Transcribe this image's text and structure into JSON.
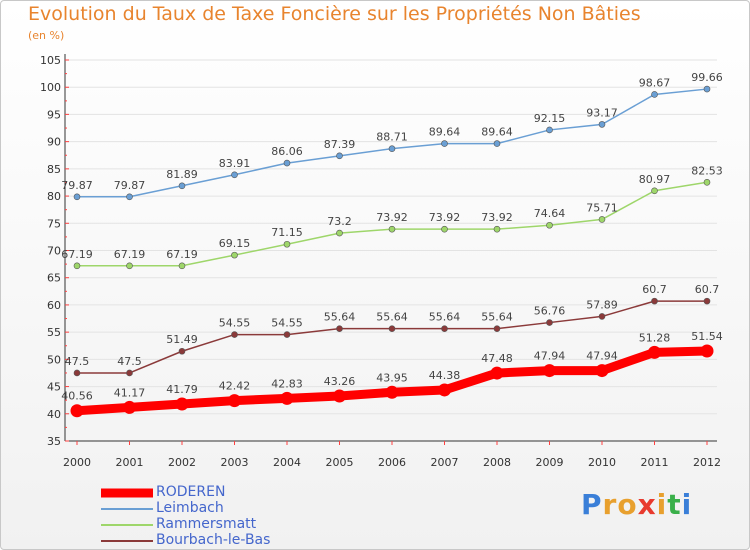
{
  "header": {
    "title": "Evolution du Taux de Taxe Foncière sur les Propriétés Non Bâties",
    "subtitle": "(en %)"
  },
  "chart_data": {
    "type": "line",
    "categories": [
      "2000",
      "2001",
      "2002",
      "2003",
      "2004",
      "2005",
      "2006",
      "2007",
      "2008",
      "2009",
      "2010",
      "2011",
      "2012"
    ],
    "ylim": [
      35,
      105
    ],
    "yticks": [
      35,
      40,
      45,
      50,
      55,
      60,
      65,
      70,
      75,
      80,
      85,
      90,
      95,
      100,
      105
    ],
    "series": [
      {
        "name": "RODEREN",
        "color": "#ff0000",
        "values": [
          40.56,
          41.17,
          41.79,
          42.42,
          42.83,
          43.26,
          43.95,
          44.38,
          47.48,
          47.94,
          47.94,
          51.28,
          51.54
        ],
        "labels": [
          "40.56",
          "41.17",
          "41.79",
          "42.42",
          "42.83",
          "43.26",
          "43.95",
          "44.38",
          "47.48",
          "47.94",
          "47.94",
          "51.28",
          "51.54"
        ]
      },
      {
        "name": "Leimbach",
        "color": "#6a9fd4",
        "values": [
          79.87,
          79.87,
          81.89,
          83.91,
          86.06,
          87.39,
          88.71,
          89.64,
          89.64,
          92.15,
          93.17,
          98.67,
          99.66
        ],
        "labels": [
          "79.87",
          "79.87",
          "81.89",
          "83.91",
          "86.06",
          "87.39",
          "88.71",
          "89.64",
          "89.64",
          "92.15",
          "93.17",
          "98.67",
          "99.66"
        ]
      },
      {
        "name": "Rammersmatt",
        "color": "#9ed66a",
        "values": [
          67.19,
          67.19,
          67.19,
          69.15,
          71.15,
          73.2,
          73.92,
          73.92,
          73.92,
          74.64,
          75.71,
          80.97,
          82.53
        ],
        "labels": [
          "67.19",
          "67.19",
          "67.19",
          "69.15",
          "71.15",
          "73.2",
          "73.92",
          "73.92",
          "73.92",
          "74.64",
          "75.71",
          "80.97",
          "82.53"
        ]
      },
      {
        "name": "Bourbach-le-Bas",
        "color": "#8b3a3a",
        "values": [
          47.5,
          47.5,
          51.49,
          54.55,
          54.55,
          55.64,
          55.64,
          55.64,
          55.64,
          56.76,
          57.89,
          60.7,
          60.7
        ],
        "labels": [
          "47.5",
          "47.5",
          "51.49",
          "54.55",
          "54.55",
          "55.64",
          "55.64",
          "55.64",
          "55.64",
          "56.76",
          "57.89",
          "60.7",
          "60.7"
        ]
      }
    ]
  },
  "brand": {
    "letters": [
      "P",
      "r",
      "o",
      "x",
      "i",
      "t",
      "i"
    ],
    "colors": [
      "#3a7fd8",
      "#e8a02e",
      "#e8a02e",
      "#e83a2e",
      "#e8a02e",
      "#3ab04a",
      "#3a7fd8"
    ]
  }
}
